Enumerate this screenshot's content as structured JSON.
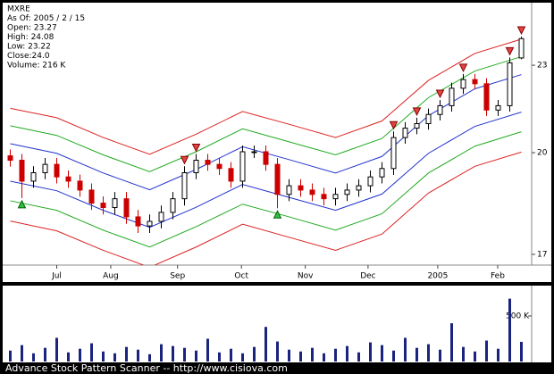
{
  "chart_data": [
    {
      "type": "candlestick",
      "log_scale": true,
      "info": [
        "MXRE",
        "As Of: 2005 / 2 / 15",
        "Open: 23.27",
        "High: 24.08",
        "Low: 23.22",
        "Close:24.0",
        "Volume: 216 K"
      ],
      "x": [
        0,
        1,
        2,
        3,
        4,
        5,
        6,
        7,
        8,
        9,
        10,
        11,
        12,
        13,
        14,
        15,
        16,
        17,
        18,
        19,
        20,
        21,
        22,
        23,
        24,
        25,
        26,
        27,
        28,
        29,
        30,
        31,
        32,
        33,
        34,
        35,
        36,
        37,
        38,
        39,
        40,
        41,
        42,
        43,
        44
      ],
      "open": [
        19.9,
        19.76,
        19.11,
        19.37,
        19.63,
        19.24,
        19.11,
        18.84,
        18.45,
        18.32,
        18.58,
        18.05,
        17.79,
        17.92,
        18.18,
        18.58,
        19.37,
        19.76,
        19.63,
        19.5,
        19.11,
        20.03,
        20.03,
        19.63,
        18.71,
        18.97,
        18.84,
        18.71,
        18.58,
        18.71,
        18.84,
        18.97,
        19.24,
        19.5,
        20.49,
        20.8,
        20.95,
        21.26,
        21.56,
        22.17,
        22.48,
        22.33,
        21.41,
        21.56,
        23.27
      ],
      "high": [
        20.1,
        19.96,
        19.57,
        19.83,
        19.83,
        19.44,
        19.31,
        19.04,
        18.65,
        18.78,
        18.78,
        18.25,
        18.12,
        18.38,
        18.78,
        19.57,
        19.96,
        19.96,
        19.83,
        19.7,
        20.23,
        20.23,
        20.23,
        19.83,
        19.17,
        19.17,
        19.04,
        18.91,
        18.91,
        19.04,
        19.17,
        19.44,
        19.7,
        20.69,
        21.0,
        21.15,
        21.46,
        21.76,
        22.37,
        22.68,
        22.68,
        22.53,
        21.76,
        23.29,
        24.08
      ],
      "low": [
        19.56,
        18.6,
        18.91,
        19.17,
        19.04,
        18.91,
        18.64,
        18.25,
        18.12,
        18.12,
        17.85,
        17.59,
        17.59,
        17.72,
        17.98,
        18.38,
        19.17,
        19.43,
        19.3,
        18.91,
        18.91,
        19.83,
        19.43,
        18.3,
        18.51,
        18.64,
        18.51,
        18.38,
        18.38,
        18.51,
        18.64,
        18.77,
        19.04,
        19.3,
        20.29,
        20.6,
        20.75,
        21.06,
        21.36,
        21.97,
        22.13,
        21.21,
        21.21,
        21.36,
        23.22
      ],
      "close": [
        19.76,
        19.11,
        19.37,
        19.63,
        19.24,
        19.11,
        18.84,
        18.45,
        18.32,
        18.58,
        18.05,
        17.79,
        17.92,
        18.18,
        18.58,
        19.37,
        19.76,
        19.63,
        19.5,
        19.11,
        20.03,
        20.03,
        19.63,
        18.71,
        18.97,
        18.84,
        18.71,
        18.58,
        18.71,
        18.84,
        18.97,
        19.24,
        19.5,
        20.49,
        20.8,
        20.95,
        21.26,
        21.56,
        22.17,
        22.48,
        22.33,
        21.41,
        21.56,
        23.09,
        24.0
      ],
      "up_color": "#000000",
      "down_color": "#cc0000",
      "bands": [
        {
          "color": "#dd2222",
          "x": [
            0,
            4,
            8,
            12,
            16,
            20,
            24,
            28,
            32,
            36,
            40,
            44
          ],
          "values": [
            21.47,
            21.15,
            20.49,
            19.95,
            20.6,
            21.36,
            20.93,
            20.49,
            21.04,
            22.45,
            23.44,
            23.98
          ]
        },
        {
          "color": "#22aa22",
          "x": [
            0,
            4,
            8,
            12,
            16,
            20,
            24,
            28,
            32,
            36,
            40,
            44
          ],
          "values": [
            20.88,
            20.56,
            19.93,
            19.4,
            20.03,
            20.78,
            20.35,
            19.93,
            20.46,
            21.84,
            22.79,
            23.32
          ]
        },
        {
          "color": "#2233cc",
          "x": [
            0,
            4,
            8,
            12,
            16,
            20,
            24,
            28,
            32,
            36,
            40,
            44
          ],
          "values": [
            20.29,
            19.98,
            19.36,
            18.85,
            19.47,
            20.19,
            19.78,
            19.36,
            19.88,
            21.22,
            22.15,
            22.66
          ]
        },
        {
          "color": "#2233cc",
          "x": [
            0,
            4,
            8,
            12,
            16,
            20,
            24,
            28,
            32,
            36,
            40,
            44
          ],
          "values": [
            19.11,
            18.82,
            18.24,
            17.75,
            18.33,
            19.01,
            18.62,
            18.24,
            18.72,
            19.98,
            20.86,
            21.34
          ]
        },
        {
          "color": "#22aa22",
          "x": [
            0,
            4,
            8,
            12,
            16,
            20,
            24,
            28,
            32,
            36,
            40,
            44
          ],
          "values": [
            18.52,
            18.24,
            17.67,
            17.2,
            17.77,
            18.42,
            18.05,
            17.67,
            18.14,
            19.36,
            20.21,
            20.68
          ]
        },
        {
          "color": "#dd2222",
          "x": [
            0,
            4,
            8,
            12,
            16,
            20,
            24,
            28,
            32,
            36,
            40,
            44
          ],
          "values": [
            17.93,
            17.65,
            17.11,
            16.65,
            17.2,
            17.84,
            17.47,
            17.11,
            17.56,
            18.75,
            19.57,
            20.02
          ]
        }
      ],
      "buy_signals": {
        "color": "#33bb44",
        "x": [
          1,
          23
        ]
      },
      "sell_signals": {
        "color": "#e04444",
        "x": [
          15,
          16,
          33,
          35,
          37,
          39,
          43,
          44
        ]
      },
      "xlim": [
        -0.5,
        44.5
      ],
      "xticks": [
        {
          "value": 4,
          "label": "Jul"
        },
        {
          "value": 8.65,
          "label": "Aug"
        },
        {
          "value": 14.4,
          "label": "Sep"
        },
        {
          "value": 19.9,
          "label": "Oct"
        },
        {
          "value": 25.4,
          "label": "Nov"
        },
        {
          "value": 30.8,
          "label": "Dec"
        },
        {
          "value": 36.8,
          "label": "2005"
        },
        {
          "value": 41.96,
          "label": "Feb"
        }
      ],
      "ylim": [
        16.71,
        25.42
      ],
      "yticks": [
        17,
        20,
        23
      ]
    },
    {
      "type": "bar",
      "color": "#1a237e",
      "values": [
        120,
        180,
        90,
        150,
        260,
        100,
        140,
        200,
        110,
        90,
        160,
        130,
        80,
        190,
        170,
        150,
        120,
        250,
        100,
        140,
        90,
        160,
        380,
        220,
        130,
        110,
        150,
        90,
        140,
        170,
        100,
        210,
        180,
        120,
        260,
        150,
        190,
        130,
        420,
        160,
        110,
        230,
        140,
        690,
        216
      ],
      "ylim": [
        0,
        833
      ],
      "yticks": [
        {
          "value": 500,
          "label": "500 K"
        }
      ]
    }
  ],
  "footer": "Advance Stock Pattern Scanner -- http://www.cisiova.com"
}
